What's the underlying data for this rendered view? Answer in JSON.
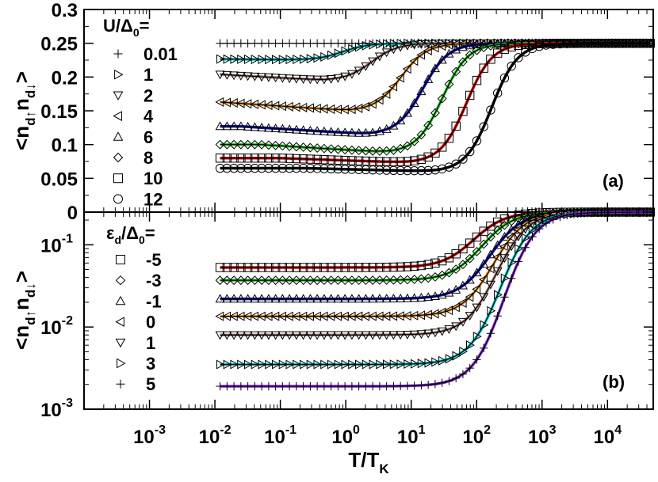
{
  "chart_data": [
    {
      "id": "a",
      "type": "line",
      "panel_label": "(a)",
      "ylabel": "<n_d↑n_d↓>",
      "xlabel": "",
      "xscale": "log",
      "yscale": "linear",
      "xlim": [
        0.0001,
        50000
      ],
      "ylim": [
        0,
        0.3
      ],
      "yticks": [
        0,
        0.05,
        0.1,
        0.15,
        0.2,
        0.25,
        0.3
      ],
      "ytick_labels": [
        "0",
        "0.05",
        "0.1",
        "0.15",
        "0.2",
        "0.25",
        "0.3"
      ],
      "legend_title": "U/Δ0=",
      "legend_position": "left",
      "series": [
        {
          "name": "0.01",
          "marker": "plus",
          "color": "#00000000",
          "plateau": 0.25,
          "hump": 0.25,
          "xh": 1,
          "T": 0.3,
          "hi": 0.25
        },
        {
          "name": "1",
          "marker": "tri-right",
          "color": "#00d0d0",
          "plateau": 0.227,
          "hump": 0.225,
          "xh": 0.5,
          "T": 0.9,
          "hi": 0.25
        },
        {
          "name": "2",
          "marker": "tri-down",
          "color": "#b08a84",
          "plateau": 0.206,
          "hump": 0.195,
          "xh": 0.5,
          "T": 2.5,
          "hi": 0.25
        },
        {
          "name": "4",
          "marker": "tri-left",
          "color": "#f0a030",
          "plateau": 0.163,
          "hump": 0.15,
          "xh": 1.2,
          "T": 7,
          "hi": 0.25
        },
        {
          "name": "6",
          "marker": "tri-up",
          "color": "#1010c0",
          "plateau": 0.127,
          "hump": 0.115,
          "xh": 2.5,
          "T": 15,
          "hi": 0.25
        },
        {
          "name": "8",
          "marker": "diamond",
          "color": "#22cc22",
          "plateau": 0.1,
          "hump": 0.088,
          "xh": 5,
          "T": 30,
          "hi": 0.25
        },
        {
          "name": "10",
          "marker": "square",
          "color": "#dd0000",
          "plateau": 0.08,
          "hump": 0.073,
          "xh": 10,
          "T": 70,
          "hi": 0.25
        },
        {
          "name": "12",
          "marker": "circle",
          "color": "#000000",
          "plateau": 0.065,
          "hump": 0.06,
          "xh": 25,
          "T": 170,
          "hi": 0.25
        }
      ]
    },
    {
      "id": "b",
      "type": "line",
      "panel_label": "(b)",
      "ylabel": "<n_d↑n_d↓>",
      "xlabel": "T/T_K",
      "xscale": "log",
      "yscale": "log",
      "xlim": [
        0.0001,
        50000
      ],
      "ylim": [
        0.001,
        0.25
      ],
      "ytick_labels": [
        "10^-3",
        "10^-2",
        "10^-1",
        "0"
      ],
      "xtick_labels": [
        "10^-3",
        "10^-2",
        "10^-1",
        "10^0",
        "10^1",
        "10^2",
        "10^3",
        "10^4"
      ],
      "legend_title": "εd/Δ0=",
      "legend_position": "left",
      "series": [
        {
          "name": "-5",
          "marker": "square",
          "color": "#dd0000",
          "plateau": 0.053,
          "T": 90
        },
        {
          "name": "-3",
          "marker": "diamond",
          "color": "#22cc22",
          "plateau": 0.037,
          "T": 120
        },
        {
          "name": "-1",
          "marker": "tri-up",
          "color": "#1010c0",
          "plateau": 0.022,
          "T": 160
        },
        {
          "name": "0",
          "marker": "tri-left",
          "color": "#f0a030",
          "plateau": 0.0135,
          "T": 180
        },
        {
          "name": "1",
          "marker": "tri-down",
          "color": "#b08a84",
          "plateau": 0.008,
          "T": 200
        },
        {
          "name": "3",
          "marker": "tri-right",
          "color": "#00d0d0",
          "plateau": 0.0035,
          "T": 230
        },
        {
          "name": "5",
          "marker": "plus",
          "color": "#8a2be2",
          "plateau": 0.0019,
          "T": 260
        }
      ]
    }
  ]
}
